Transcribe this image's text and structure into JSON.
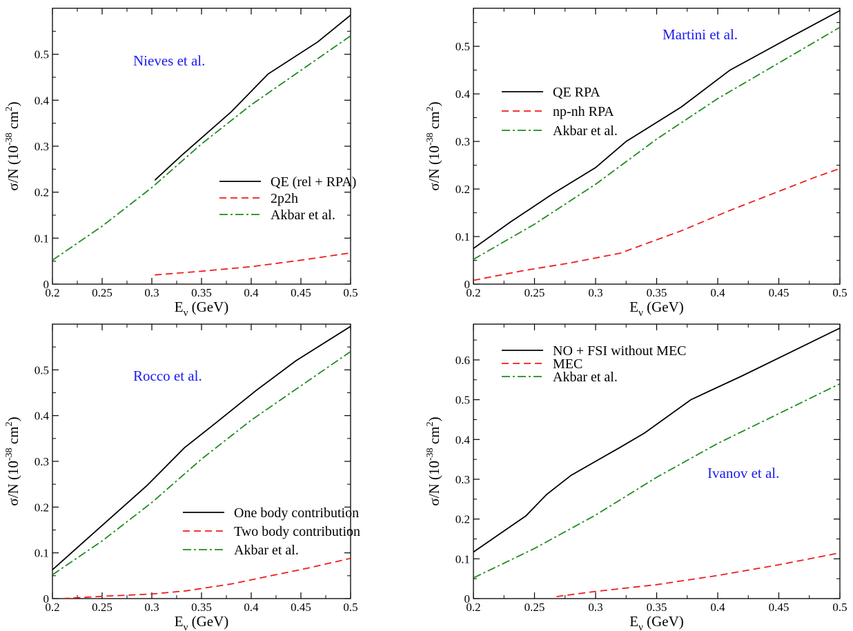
{
  "chart_data": [
    {
      "type": "line",
      "title": "",
      "annotation": "Nieves et al.",
      "annotation_color": "#1a1aee",
      "xlabel": "E",
      "xlabel_sub": "ν",
      "xlabel_unit": " (GeV)",
      "ylabel_main": "σ/N (10",
      "ylabel_exp": "-38",
      "ylabel_mid": " cm",
      "ylabel_exp2": "2",
      "ylabel_end": ")",
      "xlim": [
        0.2,
        0.5
      ],
      "ylim": [
        0,
        0.6
      ],
      "xticks": [
        "0.2",
        "0.25",
        "0.3",
        "0.35",
        "0.4",
        "0.45",
        "0.5"
      ],
      "yticks": [
        "0",
        "0.1",
        "0.2",
        "0.3",
        "0.4",
        "0.5"
      ],
      "grid": false,
      "legend_position": "center-right",
      "series": [
        {
          "name": "QE (rel + RPA)",
          "color": "#000000",
          "dash": "solid",
          "x": [
            0.303,
            0.33,
            0.38,
            0.417,
            0.467,
            0.5
          ],
          "y": [
            0.226,
            0.28,
            0.375,
            0.457,
            0.527,
            0.585
          ]
        },
        {
          "name": "2p2h",
          "color": "#ee1c1c",
          "dash": "dashed",
          "x": [
            0.303,
            0.35,
            0.4,
            0.45,
            0.5
          ],
          "y": [
            0.02,
            0.028,
            0.038,
            0.052,
            0.068
          ]
        },
        {
          "name": "Akbar et al.",
          "color": "#1e8c1e",
          "dash": "dashdot",
          "x": [
            0.2,
            0.25,
            0.3,
            0.35,
            0.4,
            0.45,
            0.5
          ],
          "y": [
            0.052,
            0.126,
            0.21,
            0.305,
            0.39,
            0.465,
            0.54
          ]
        }
      ]
    },
    {
      "type": "line",
      "title": "",
      "annotation": "Martini et al.",
      "annotation_color": "#1a1aee",
      "xlabel": "E",
      "xlabel_sub": "ν",
      "xlabel_unit": " (GeV)",
      "ylabel_main": "σ/N (10",
      "ylabel_exp": "-38",
      "ylabel_mid": " cm",
      "ylabel_exp2": "2",
      "ylabel_end": ")",
      "xlim": [
        0.2,
        0.5
      ],
      "ylim": [
        0,
        0.58
      ],
      "xticks": [
        "0.2",
        "0.25",
        "0.3",
        "0.35",
        "0.4",
        "0.45",
        "0.5"
      ],
      "yticks": [
        "0",
        "0.1",
        "0.2",
        "0.3",
        "0.4",
        "0.5"
      ],
      "grid": false,
      "legend_position": "left",
      "series": [
        {
          "name": "QE RPA",
          "color": "#000000",
          "dash": "solid",
          "x": [
            0.2,
            0.23,
            0.265,
            0.3,
            0.325,
            0.37,
            0.41,
            0.46,
            0.5
          ],
          "y": [
            0.075,
            0.13,
            0.19,
            0.245,
            0.3,
            0.372,
            0.45,
            0.52,
            0.575
          ]
        },
        {
          "name": "np-nh RPA",
          "color": "#ee1c1c",
          "dash": "dashed",
          "x": [
            0.2,
            0.24,
            0.28,
            0.32,
            0.37,
            0.41,
            0.46,
            0.48,
            0.5
          ],
          "y": [
            0.008,
            0.028,
            0.045,
            0.065,
            0.112,
            0.155,
            0.205,
            0.225,
            0.243
          ]
        },
        {
          "name": "Akbar et al.",
          "color": "#1e8c1e",
          "dash": "dashdot",
          "x": [
            0.2,
            0.25,
            0.3,
            0.35,
            0.4,
            0.45,
            0.5
          ],
          "y": [
            0.052,
            0.126,
            0.21,
            0.305,
            0.39,
            0.465,
            0.54
          ]
        }
      ]
    },
    {
      "type": "line",
      "title": "",
      "annotation": "Rocco et al.",
      "annotation_color": "#1a1aee",
      "xlabel": "E",
      "xlabel_sub": "ν",
      "xlabel_unit": " (GeV)",
      "ylabel_main": "σ/N (10",
      "ylabel_exp": "-38",
      "ylabel_mid": " cm",
      "ylabel_exp2": "2",
      "ylabel_end": ")",
      "xlim": [
        0.2,
        0.5
      ],
      "ylim": [
        0,
        0.6
      ],
      "xticks": [
        "0.2",
        "0.25",
        "0.3",
        "0.35",
        "0.4",
        "0.45",
        "0.5"
      ],
      "yticks": [
        "0",
        "0.1",
        "0.2",
        "0.3",
        "0.4",
        "0.5"
      ],
      "grid": false,
      "legend_position": "bottom-right",
      "series": [
        {
          "name": "One body contribution",
          "color": "#000000",
          "dash": "solid",
          "x": [
            0.2,
            0.25,
            0.295,
            0.333,
            0.365,
            0.405,
            0.445,
            0.5
          ],
          "y": [
            0.063,
            0.16,
            0.247,
            0.33,
            0.385,
            0.455,
            0.52,
            0.595
          ]
        },
        {
          "name": "Two body contribution",
          "color": "#ee1c1c",
          "dash": "dashed",
          "x": [
            0.21,
            0.25,
            0.3,
            0.335,
            0.38,
            0.42,
            0.46,
            0.5
          ],
          "y": [
            0.0,
            0.005,
            0.01,
            0.017,
            0.032,
            0.05,
            0.068,
            0.088
          ]
        },
        {
          "name": "Akbar et al.",
          "color": "#1e8c1e",
          "dash": "dashdot",
          "x": [
            0.2,
            0.25,
            0.3,
            0.35,
            0.4,
            0.45,
            0.5
          ],
          "y": [
            0.052,
            0.126,
            0.21,
            0.305,
            0.39,
            0.465,
            0.54
          ]
        }
      ]
    },
    {
      "type": "line",
      "title": "",
      "annotation": "Ivanov et al.",
      "annotation_color": "#1a1aee",
      "xlabel": "E",
      "xlabel_sub": "ν",
      "xlabel_unit": " (GeV)",
      "ylabel_main": "σ/N (10",
      "ylabel_exp": "-38",
      "ylabel_mid": " cm",
      "ylabel_exp2": "2",
      "ylabel_end": ")",
      "xlim": [
        0.2,
        0.5
      ],
      "ylim": [
        0,
        0.69
      ],
      "xticks": [
        "0.2",
        "0.25",
        "0.3",
        "0.35",
        "0.4",
        "0.45",
        "0.5"
      ],
      "yticks": [
        "0",
        "0.1",
        "0.2",
        "0.3",
        "0.4",
        "0.5",
        "0.6"
      ],
      "grid": false,
      "legend_position": "top-left",
      "series": [
        {
          "name": "NO + FSI without MEC",
          "color": "#000000",
          "dash": "solid",
          "x": [
            0.2,
            0.243,
            0.26,
            0.28,
            0.3,
            0.32,
            0.34,
            0.378,
            0.42,
            0.46,
            0.5
          ],
          "y": [
            0.117,
            0.208,
            0.262,
            0.31,
            0.345,
            0.38,
            0.416,
            0.5,
            0.56,
            0.62,
            0.68
          ]
        },
        {
          "name": "MEC",
          "color": "#ee1c1c",
          "dash": "dashed",
          "x": [
            0.268,
            0.3,
            0.35,
            0.4,
            0.45,
            0.5
          ],
          "y": [
            0.005,
            0.018,
            0.035,
            0.058,
            0.085,
            0.115
          ]
        },
        {
          "name": "Akbar et al.",
          "color": "#1e8c1e",
          "dash": "dashdot",
          "x": [
            0.2,
            0.25,
            0.3,
            0.35,
            0.4,
            0.45,
            0.5
          ],
          "y": [
            0.052,
            0.126,
            0.21,
            0.305,
            0.39,
            0.465,
            0.54
          ]
        }
      ]
    }
  ]
}
